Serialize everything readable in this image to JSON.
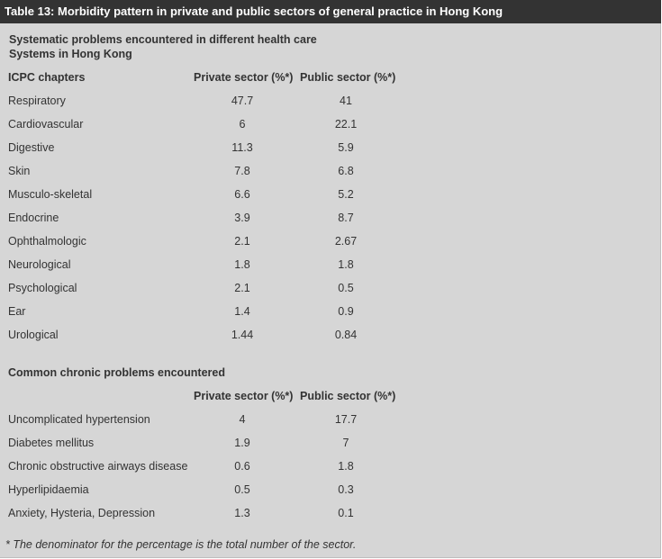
{
  "table_title": "Table 13: Morbidity pattern in private and public sectors of general practice in Hong Kong",
  "section1": {
    "heading_line1": "Systematic problems encountered in different health care",
    "heading_line2": "Systems in Hong Kong",
    "col_name": "ICPC chapters",
    "col_private": "Private sector (%*)",
    "col_public": "Public sector (%*)",
    "rows": [
      {
        "name": "Respiratory",
        "private": "47.7",
        "public": "41"
      },
      {
        "name": "Cardiovascular",
        "private": "6",
        "public": "22.1"
      },
      {
        "name": "Digestive",
        "private": "11.3",
        "public": "5.9"
      },
      {
        "name": "Skin",
        "private": "7.8",
        "public": "6.8"
      },
      {
        "name": "Musculo-skeletal",
        "private": "6.6",
        "public": "5.2"
      },
      {
        "name": "Endocrine",
        "private": "3.9",
        "public": "8.7"
      },
      {
        "name": "Ophthalmologic",
        "private": "2.1",
        "public": "2.67"
      },
      {
        "name": "Neurological",
        "private": "1.8",
        "public": "1.8"
      },
      {
        "name": "Psychological",
        "private": "2.1",
        "public": "0.5"
      },
      {
        "name": "Ear",
        "private": "1.4",
        "public": "0.9"
      },
      {
        "name": "Urological",
        "private": "1.44",
        "public": "0.84"
      }
    ]
  },
  "section2": {
    "heading": "Common chronic problems encountered",
    "col_private": "Private sector (%*)",
    "col_public": "Public sector (%*)",
    "rows": [
      {
        "name": "Uncomplicated hypertension",
        "private": "4",
        "public": "17.7"
      },
      {
        "name": "Diabetes mellitus",
        "private": "1.9",
        "public": "7"
      },
      {
        "name": "Chronic obstructive airways disease",
        "private": "0.6",
        "public": "1.8"
      },
      {
        "name": "Hyperlipidaemia",
        "private": "0.5",
        "public": "0.3"
      },
      {
        "name": "Anxiety, Hysteria, Depression",
        "private": "1.3",
        "public": "0.1"
      }
    ]
  },
  "footnote": "* The denominator for the percentage is the total number of the sector."
}
